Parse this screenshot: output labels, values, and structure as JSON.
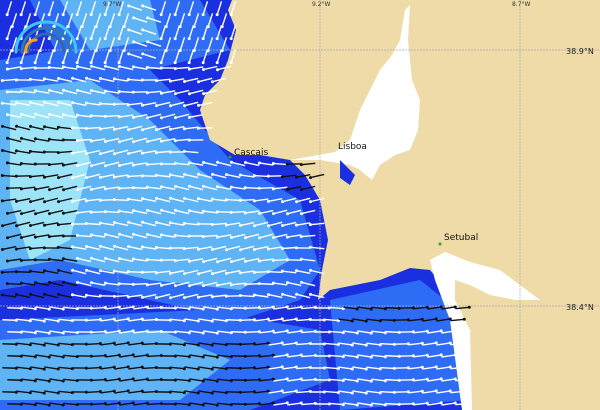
{
  "map": {
    "longitude_labels": [
      "9.7°W",
      "9.2°W",
      "8.7°W"
    ],
    "latitude_labels": [
      "38.9°N",
      "38.4°N"
    ],
    "places": [
      "Cascais",
      "Lisboa",
      "Setubal"
    ],
    "colors": {
      "land": "#eedba8",
      "ocean_deep": "#1a2fe0",
      "ocean_mid": "#2f6cf5",
      "ocean_light": "#5fb4f5",
      "ocean_pale": "#9ee4f8",
      "arrow_light": "#ffffff",
      "arrow_strong": "#111111",
      "estuary": "#ffffff"
    },
    "logo_icon": "wave-logo-icon"
  }
}
